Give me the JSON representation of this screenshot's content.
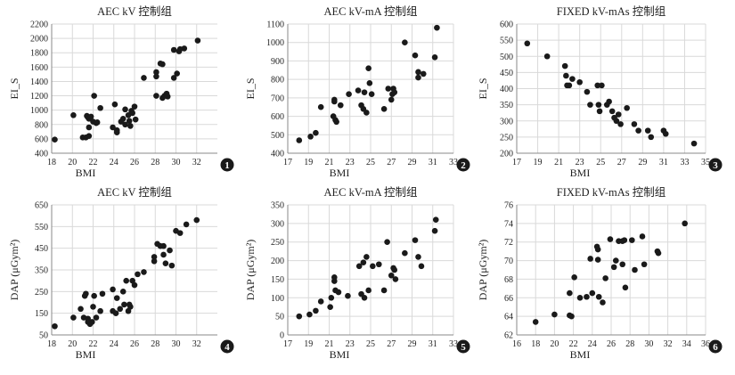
{
  "chart_data": [
    {
      "type": "scatter",
      "number": "1",
      "title": "AEC kV 控制组",
      "xlabel": "BMI",
      "ylabel": "EI_S",
      "xlim": [
        18,
        34
      ],
      "ylim": [
        400,
        2200
      ],
      "xticks": [
        18,
        20,
        22,
        24,
        26,
        28,
        30,
        32
      ],
      "yticks": [
        400,
        600,
        800,
        1000,
        1200,
        1400,
        1600,
        1800,
        2000,
        2200
      ],
      "grid": true,
      "points": [
        [
          18.3,
          590
        ],
        [
          20.1,
          930
        ],
        [
          21.0,
          620
        ],
        [
          21.3,
          620
        ],
        [
          21.4,
          920
        ],
        [
          21.5,
          900
        ],
        [
          21.6,
          880
        ],
        [
          21.6,
          640
        ],
        [
          21.6,
          760
        ],
        [
          21.8,
          910
        ],
        [
          22.0,
          840
        ],
        [
          22.1,
          1200
        ],
        [
          22.3,
          820
        ],
        [
          22.4,
          830
        ],
        [
          22.7,
          1030
        ],
        [
          23.9,
          760
        ],
        [
          24.1,
          1080
        ],
        [
          24.3,
          720
        ],
        [
          24.3,
          690
        ],
        [
          24.7,
          840
        ],
        [
          24.9,
          880
        ],
        [
          25.1,
          1010
        ],
        [
          25.1,
          800
        ],
        [
          25.4,
          930
        ],
        [
          25.5,
          850
        ],
        [
          25.6,
          780
        ],
        [
          25.7,
          990
        ],
        [
          25.8,
          960
        ],
        [
          26.0,
          1050
        ],
        [
          26.1,
          870
        ],
        [
          26.9,
          1450
        ],
        [
          28.1,
          1470
        ],
        [
          28.1,
          1530
        ],
        [
          28.1,
          1200
        ],
        [
          28.5,
          1650
        ],
        [
          28.7,
          1640
        ],
        [
          28.7,
          1170
        ],
        [
          28.9,
          1200
        ],
        [
          29.1,
          1230
        ],
        [
          29.2,
          1190
        ],
        [
          29.8,
          1450
        ],
        [
          29.8,
          1840
        ],
        [
          30.1,
          1510
        ],
        [
          30.3,
          1820
        ],
        [
          30.4,
          1850
        ],
        [
          30.8,
          1860
        ],
        [
          32.1,
          1970
        ]
      ]
    },
    {
      "type": "scatter",
      "number": "2",
      "title": "AEC kV-mA 控制组",
      "xlabel": "BMI",
      "ylabel": "EI_S",
      "xlim": [
        17,
        33
      ],
      "ylim": [
        400,
        1100
      ],
      "xticks": [
        17,
        19,
        21,
        23,
        25,
        27,
        29,
        31,
        33
      ],
      "yticks": [
        400,
        500,
        600,
        700,
        800,
        900,
        1000,
        1100
      ],
      "grid": true,
      "points": [
        [
          18.1,
          470
        ],
        [
          19.2,
          490
        ],
        [
          19.7,
          510
        ],
        [
          20.2,
          650
        ],
        [
          21.4,
          600
        ],
        [
          21.5,
          690
        ],
        [
          21.5,
          680
        ],
        [
          21.6,
          580
        ],
        [
          21.7,
          570
        ],
        [
          22.1,
          660
        ],
        [
          22.9,
          720
        ],
        [
          23.8,
          740
        ],
        [
          24.1,
          660
        ],
        [
          24.3,
          640
        ],
        [
          24.4,
          730
        ],
        [
          24.6,
          620
        ],
        [
          24.8,
          860
        ],
        [
          24.9,
          780
        ],
        [
          25.1,
          720
        ],
        [
          26.3,
          640
        ],
        [
          26.7,
          750
        ],
        [
          27.0,
          690
        ],
        [
          27.1,
          720
        ],
        [
          27.2,
          750
        ],
        [
          27.3,
          730
        ],
        [
          28.3,
          1000
        ],
        [
          29.3,
          930
        ],
        [
          29.6,
          840
        ],
        [
          29.6,
          810
        ],
        [
          30.1,
          830
        ],
        [
          31.2,
          920
        ],
        [
          31.4,
          1080
        ]
      ]
    },
    {
      "type": "scatter",
      "number": "3",
      "title": "FIXED kV-mAs 控制组",
      "xlabel": "BMI",
      "ylabel": "EI_S",
      "xlim": [
        17,
        35
      ],
      "ylim": [
        200,
        600
      ],
      "xticks": [
        17,
        19,
        21,
        23,
        25,
        27,
        29,
        31,
        33,
        35
      ],
      "yticks": [
        200,
        250,
        300,
        350,
        400,
        450,
        500,
        550,
        600
      ],
      "grid": true,
      "points": [
        [
          18.0,
          540
        ],
        [
          19.9,
          500
        ],
        [
          21.6,
          470
        ],
        [
          21.7,
          440
        ],
        [
          21.8,
          410
        ],
        [
          22.0,
          410
        ],
        [
          22.3,
          430
        ],
        [
          23.0,
          420
        ],
        [
          23.7,
          390
        ],
        [
          24.0,
          350
        ],
        [
          24.7,
          410
        ],
        [
          24.8,
          350
        ],
        [
          24.9,
          330
        ],
        [
          25.1,
          410
        ],
        [
          25.6,
          350
        ],
        [
          25.8,
          360
        ],
        [
          26.1,
          330
        ],
        [
          26.3,
          310
        ],
        [
          26.5,
          300
        ],
        [
          26.7,
          320
        ],
        [
          26.9,
          290
        ],
        [
          27.5,
          340
        ],
        [
          28.2,
          290
        ],
        [
          28.6,
          270
        ],
        [
          29.5,
          270
        ],
        [
          29.8,
          250
        ],
        [
          31.0,
          270
        ],
        [
          31.2,
          260
        ],
        [
          33.9,
          230
        ]
      ]
    },
    {
      "type": "scatter",
      "number": "4",
      "title": "AEC kV 控制组",
      "xlabel": "BMI",
      "ylabel": "DAP (μGym²)",
      "xlim": [
        18,
        34
      ],
      "ylim": [
        50,
        650
      ],
      "xticks": [
        18,
        20,
        22,
        24,
        26,
        28,
        30,
        32
      ],
      "yticks": [
        50,
        150,
        250,
        350,
        450,
        550,
        650
      ],
      "grid": true,
      "points": [
        [
          18.3,
          90
        ],
        [
          20.1,
          130
        ],
        [
          20.8,
          170
        ],
        [
          21.1,
          130
        ],
        [
          21.2,
          230
        ],
        [
          21.3,
          240
        ],
        [
          21.5,
          125
        ],
        [
          21.5,
          110
        ],
        [
          21.7,
          100
        ],
        [
          21.9,
          110
        ],
        [
          22.0,
          180
        ],
        [
          22.1,
          230
        ],
        [
          22.3,
          130
        ],
        [
          22.7,
          160
        ],
        [
          22.9,
          240
        ],
        [
          23.9,
          260
        ],
        [
          23.9,
          160
        ],
        [
          24.2,
          150
        ],
        [
          24.3,
          220
        ],
        [
          24.6,
          170
        ],
        [
          24.9,
          250
        ],
        [
          25.0,
          190
        ],
        [
          25.2,
          300
        ],
        [
          25.4,
          160
        ],
        [
          25.5,
          190
        ],
        [
          25.6,
          180
        ],
        [
          25.8,
          300
        ],
        [
          26.0,
          280
        ],
        [
          26.3,
          330
        ],
        [
          26.9,
          340
        ],
        [
          27.9,
          390
        ],
        [
          27.9,
          410
        ],
        [
          28.2,
          470
        ],
        [
          28.5,
          460
        ],
        [
          28.8,
          460
        ],
        [
          28.8,
          420
        ],
        [
          29.0,
          380
        ],
        [
          29.4,
          440
        ],
        [
          29.6,
          370
        ],
        [
          30.0,
          530
        ],
        [
          30.4,
          520
        ],
        [
          31.0,
          560
        ],
        [
          32.0,
          580
        ]
      ]
    },
    {
      "type": "scatter",
      "number": "5",
      "title": "AEC kV-mA 控制组",
      "xlabel": "BMI",
      "ylabel": "DAP (μGym²)",
      "xlim": [
        17,
        33
      ],
      "ylim": [
        0,
        350
      ],
      "xticks": [
        17,
        19,
        21,
        23,
        25,
        27,
        29,
        31,
        33
      ],
      "yticks": [
        0,
        50,
        100,
        150,
        200,
        250,
        300,
        350
      ],
      "grid": true,
      "points": [
        [
          18.1,
          50
        ],
        [
          19.1,
          55
        ],
        [
          19.7,
          65
        ],
        [
          20.2,
          90
        ],
        [
          21.1,
          75
        ],
        [
          21.2,
          100
        ],
        [
          21.5,
          155
        ],
        [
          21.5,
          145
        ],
        [
          21.6,
          120
        ],
        [
          21.9,
          115
        ],
        [
          22.8,
          105
        ],
        [
          23.9,
          185
        ],
        [
          24.1,
          110
        ],
        [
          24.3,
          195
        ],
        [
          24.4,
          100
        ],
        [
          24.6,
          210
        ],
        [
          24.8,
          120
        ],
        [
          25.2,
          185
        ],
        [
          25.8,
          190
        ],
        [
          26.3,
          120
        ],
        [
          26.6,
          250
        ],
        [
          27.0,
          160
        ],
        [
          27.2,
          180
        ],
        [
          27.3,
          175
        ],
        [
          27.4,
          150
        ],
        [
          28.3,
          220
        ],
        [
          29.3,
          255
        ],
        [
          29.6,
          210
        ],
        [
          29.9,
          185
        ],
        [
          31.2,
          280
        ],
        [
          31.3,
          310
        ]
      ]
    },
    {
      "type": "scatter",
      "number": "6",
      "title": "FIXED kV-mAs 控制组",
      "xlabel": "BMI",
      "ylabel": "DAP (μGym²)",
      "xlim": [
        16,
        36
      ],
      "ylim": [
        62,
        76
      ],
      "xticks": [
        16,
        18,
        20,
        22,
        24,
        26,
        28,
        30,
        32,
        34,
        36
      ],
      "yticks": [
        62,
        64,
        66,
        68,
        70,
        72,
        74,
        76
      ],
      "grid": true,
      "points": [
        [
          18.0,
          63.4
        ],
        [
          20.0,
          64.2
        ],
        [
          21.6,
          64.1
        ],
        [
          21.6,
          66.5
        ],
        [
          21.8,
          64.0
        ],
        [
          22.1,
          68.2
        ],
        [
          22.7,
          66.0
        ],
        [
          23.4,
          66.1
        ],
        [
          23.8,
          70.2
        ],
        [
          24.0,
          66.5
        ],
        [
          24.5,
          71.5
        ],
        [
          24.6,
          70.1
        ],
        [
          24.6,
          71.2
        ],
        [
          24.7,
          66.1
        ],
        [
          25.1,
          65.5
        ],
        [
          25.4,
          68.1
        ],
        [
          25.9,
          72.3
        ],
        [
          26.3,
          69.3
        ],
        [
          26.5,
          70.0
        ],
        [
          26.8,
          72.1
        ],
        [
          27.2,
          72.1
        ],
        [
          27.2,
          69.6
        ],
        [
          27.4,
          72.2
        ],
        [
          27.5,
          67.1
        ],
        [
          28.2,
          72.2
        ],
        [
          28.5,
          69.0
        ],
        [
          29.3,
          72.6
        ],
        [
          29.5,
          69.6
        ],
        [
          30.9,
          71.0
        ],
        [
          31.0,
          70.8
        ],
        [
          33.8,
          74.0
        ]
      ]
    }
  ]
}
